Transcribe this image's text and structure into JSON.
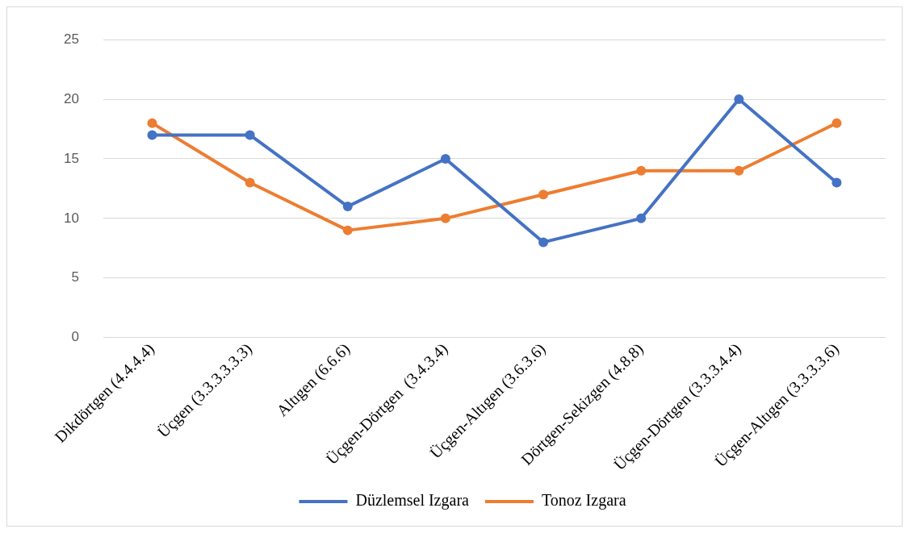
{
  "chart_data": {
    "type": "line",
    "categories": [
      "Dikdörtgen (4.4.4.4)",
      "Üçgen (3.3.3.3.3.3)",
      "Altıgen (6.6.6)",
      "Üçgen-Dörtgen  (3.4.3.4)",
      "Üçgen-Altıgen (3.6.3.6)",
      "Dörtgen-Sekizgen (4.8.8)",
      "Üçgen-Dörtgen (3.3.3.4.4)",
      "Üçgen-Altıgen (3.3.3.3.6)"
    ],
    "series": [
      {
        "name": "Düzlemsel Izgara",
        "color": "#4472c4",
        "values": [
          17,
          17,
          11,
          15,
          8,
          10,
          20,
          13
        ]
      },
      {
        "name": "Tonoz Izgara",
        "color": "#ed7d31",
        "values": [
          18,
          13,
          9,
          10,
          12,
          14,
          14,
          18
        ]
      }
    ],
    "ylim": [
      0,
      25
    ],
    "yticks": [
      0,
      5,
      10,
      15,
      20,
      25
    ],
    "grid": "y",
    "legend": "bottom",
    "marker": "circle",
    "line_style": "solid"
  }
}
